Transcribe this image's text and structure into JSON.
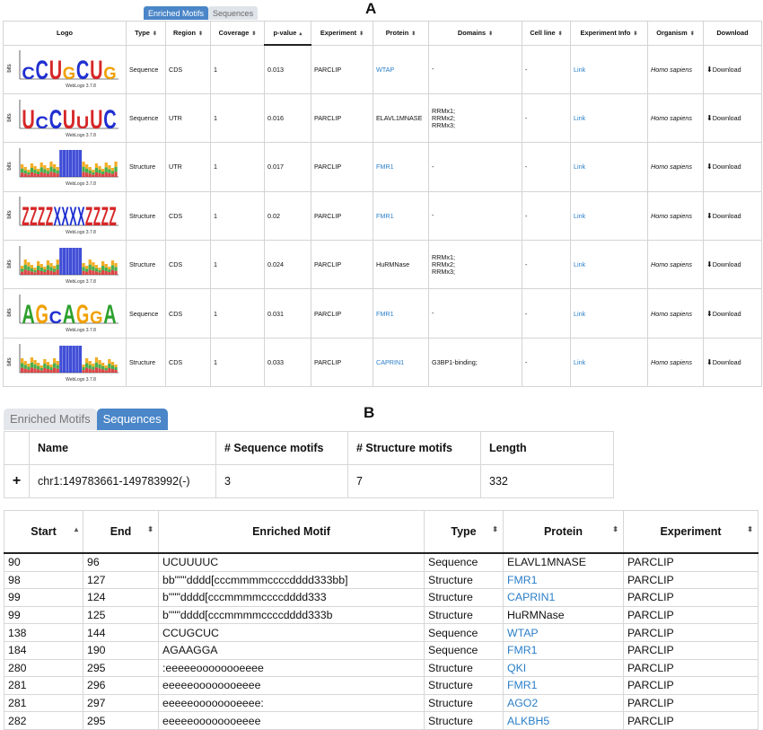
{
  "panels": {
    "a_label": "A",
    "b_label": "B"
  },
  "panel_a": {
    "tabs": [
      {
        "label": "Enriched Motifs",
        "active": true
      },
      {
        "label": "Sequences",
        "active": false
      }
    ],
    "columns": [
      "Logo",
      "Type",
      "Region",
      "Coverage",
      "p-value",
      "Experiment",
      "Protein",
      "Domains",
      "Cell line",
      "Experiment Info",
      "Organism",
      "Download"
    ],
    "rows": [
      {
        "logo_letters": "CCUGCUG",
        "logo_kind": "sequence",
        "logo_caption": "WebLogo 3.7.8",
        "type": "Sequence",
        "region": "CDS",
        "coverage": "1",
        "pvalue": "0.013",
        "experiment": "PARCLIP",
        "protein": "WTAP",
        "protein_link": true,
        "domains": "-",
        "cell_line": "-",
        "info": "Link",
        "organism": "Homo sapiens",
        "download": "Download"
      },
      {
        "logo_letters": "UCCUUUC",
        "logo_kind": "sequence",
        "logo_caption": "WebLogo 3.7.8",
        "type": "Sequence",
        "region": "UTR",
        "coverage": "1",
        "pvalue": "0.016",
        "experiment": "PARCLIP",
        "protein": "ELAVL1MNASE",
        "protein_link": false,
        "domains": "RRMx1;\nRRMx2;\nRRMx3;",
        "cell_line": "-",
        "info": "Link",
        "organism": "Homo sapiens",
        "download": "Download"
      },
      {
        "logo_letters": "",
        "logo_kind": "structure",
        "logo_caption": "WebLogo 3.7.8",
        "type": "Structure",
        "region": "UTR",
        "coverage": "1",
        "pvalue": "0.017",
        "experiment": "PARCLIP",
        "protein": "FMR1",
        "protein_link": true,
        "domains": "-",
        "cell_line": "-",
        "info": "Link",
        "organism": "Homo sapiens",
        "download": "Download"
      },
      {
        "logo_letters": "ZZZZXXXXZZZZ",
        "logo_kind": "structure-big",
        "logo_caption": "WebLogo 3.7.8",
        "type": "Structure",
        "region": "CDS",
        "coverage": "1",
        "pvalue": "0.02",
        "experiment": "PARCLIP",
        "protein": "FMR1",
        "protein_link": true,
        "domains": "-",
        "cell_line": "-",
        "info": "Link",
        "organism": "Homo sapiens",
        "download": "Download"
      },
      {
        "logo_letters": "",
        "logo_kind": "structure",
        "logo_caption": "WebLogo 3.7.8",
        "type": "Structure",
        "region": "CDS",
        "coverage": "1",
        "pvalue": "0.024",
        "experiment": "PARCLIP",
        "protein": "HuRMNase",
        "protein_link": false,
        "domains": "RRMx1;\nRRMx2;\nRRMx3;",
        "cell_line": "-",
        "info": "Link",
        "organism": "Homo sapiens",
        "download": "Download"
      },
      {
        "logo_letters": "AGCAGGA",
        "logo_kind": "sequence",
        "logo_caption": "WebLogo 3.7.8",
        "type": "Sequence",
        "region": "CDS",
        "coverage": "1",
        "pvalue": "0.031",
        "experiment": "PARCLIP",
        "protein": "FMR1",
        "protein_link": true,
        "domains": "-",
        "cell_line": "-",
        "info": "Link",
        "organism": "Homo sapiens",
        "download": "Download"
      },
      {
        "logo_letters": "",
        "logo_kind": "structure",
        "logo_caption": "WebLogo 3.7.8",
        "type": "Structure",
        "region": "CDS",
        "coverage": "1",
        "pvalue": "0.033",
        "experiment": "PARCLIP",
        "protein": "CAPRIN1",
        "protein_link": true,
        "domains": "G3BP1-binding;",
        "cell_line": "-",
        "info": "Link",
        "organism": "Homo sapiens",
        "download": "Download"
      }
    ]
  },
  "panel_b": {
    "tabs": [
      {
        "label": "Enriched Motifs",
        "active": false
      },
      {
        "label": "Sequences",
        "active": true
      }
    ],
    "summary": {
      "columns": [
        "",
        "Name",
        "# Sequence motifs",
        "# Structure motifs",
        "Length"
      ],
      "row": {
        "expand": "+",
        "name": "chr1:149783661-149783992(-)",
        "seq_motifs": "3",
        "struct_motifs": "7",
        "length": "332"
      }
    },
    "motifs": {
      "columns": [
        "Start",
        "End",
        "Enriched Motif",
        "Type",
        "Protein",
        "Experiment"
      ],
      "rows": [
        {
          "start": "90",
          "end": "96",
          "motif": "UCUUUUC",
          "type": "Sequence",
          "protein": "ELAVL1MNASE",
          "protein_link": false,
          "experiment": "PARCLIP"
        },
        {
          "start": "98",
          "end": "127",
          "motif": "bb\"\"\"dddd[cccmmmmccccdddd333bb]",
          "type": "Structure",
          "protein": "FMR1",
          "protein_link": true,
          "experiment": "PARCLIP"
        },
        {
          "start": "99",
          "end": "124",
          "motif": "b\"\"\"dddd[cccmmmmccccdddd333",
          "type": "Structure",
          "protein": "CAPRIN1",
          "protein_link": true,
          "experiment": "PARCLIP"
        },
        {
          "start": "99",
          "end": "125",
          "motif": "b\"\"\"dddd[cccmmmmccccdddd333b",
          "type": "Structure",
          "protein": "HuRMNase",
          "protein_link": false,
          "experiment": "PARCLIP"
        },
        {
          "start": "138",
          "end": "144",
          "motif": "CCUGCUC",
          "type": "Sequence",
          "protein": "WTAP",
          "protein_link": true,
          "experiment": "PARCLIP"
        },
        {
          "start": "184",
          "end": "190",
          "motif": "AGAAGGA",
          "type": "Sequence",
          "protein": "FMR1",
          "protein_link": true,
          "experiment": "PARCLIP"
        },
        {
          "start": "280",
          "end": "295",
          "motif": ":eeeeeoooooooeeee",
          "type": "Structure",
          "protein": "QKI",
          "protein_link": true,
          "experiment": "PARCLIP"
        },
        {
          "start": "281",
          "end": "296",
          "motif": "eeeeeoooooooeeee",
          "type": "Structure",
          "protein": "FMR1",
          "protein_link": true,
          "experiment": "PARCLIP"
        },
        {
          "start": "281",
          "end": "297",
          "motif": "eeeeeoooooooeeee:",
          "type": "Structure",
          "protein": "AGO2",
          "protein_link": true,
          "experiment": "PARCLIP"
        },
        {
          "start": "282",
          "end": "295",
          "motif": "eeeeeoooooooeeee",
          "type": "Structure",
          "protein": "ALKBH5",
          "protein_link": true,
          "experiment": "PARCLIP"
        }
      ]
    }
  },
  "colors": {
    "accent": "#4a86c8",
    "link": "#2a7ec8",
    "A": "#2ca02c",
    "C": "#1f2fd0",
    "G": "#f0a000",
    "U": "#d62728"
  }
}
